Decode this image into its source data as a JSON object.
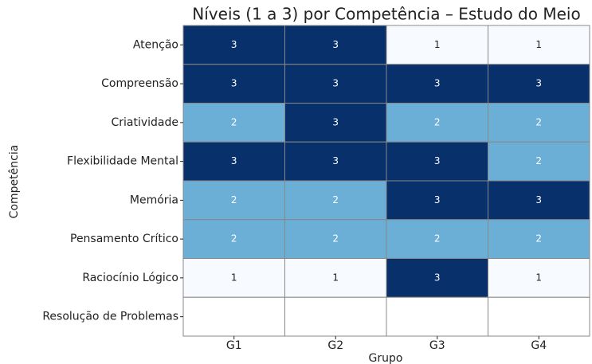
{
  "chart_data": {
    "type": "heatmap",
    "title": "Níveis (1 a 3) por Competência – Estudo do Meio",
    "xlabel": "Grupo",
    "ylabel": "Competência",
    "x": [
      "G1",
      "G2",
      "G3",
      "G4"
    ],
    "y": [
      "Atenção",
      "Compreensão",
      "Criatividade",
      "Flexibilidade Mental",
      "Memória",
      "Pensamento Crítico",
      "Raciocínio Lógico",
      "Resolução de Problemas"
    ],
    "values": [
      [
        3,
        3,
        1,
        1
      ],
      [
        3,
        3,
        3,
        3
      ],
      [
        2,
        3,
        2,
        2
      ],
      [
        3,
        3,
        3,
        2
      ],
      [
        2,
        2,
        3,
        3
      ],
      [
        2,
        2,
        2,
        2
      ],
      [
        1,
        1,
        3,
        1
      ],
      [
        null,
        null,
        null,
        null
      ]
    ],
    "zlim": [
      1,
      3
    ],
    "colorscale": [
      "#f7fbff",
      "#6baed6",
      "#08306b"
    ],
    "annotate": true
  }
}
